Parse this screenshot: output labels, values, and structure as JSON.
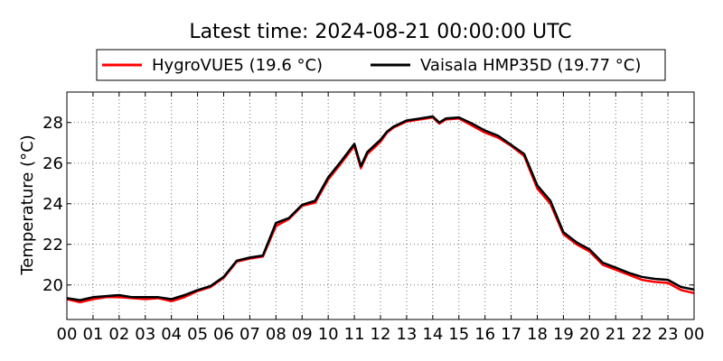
{
  "chart_data": {
    "type": "line",
    "title": "Latest time: 2024-08-21 00:00:00 UTC",
    "ylabel": "Temperature (°C)",
    "xlabel": "",
    "x_ticks": [
      "00",
      "01",
      "02",
      "03",
      "04",
      "05",
      "06",
      "07",
      "08",
      "09",
      "10",
      "11",
      "12",
      "13",
      "14",
      "15",
      "16",
      "17",
      "18",
      "19",
      "20",
      "21",
      "22",
      "23",
      "00"
    ],
    "y_ticks": [
      20,
      22,
      24,
      26,
      28
    ],
    "xlim": [
      0,
      24
    ],
    "ylim": [
      18.3,
      29.5
    ],
    "grid": true,
    "legend_position": "top",
    "series": [
      {
        "name": "HygroVUE5 (19.6 °C)",
        "color": "#ff0000",
        "x": [
          0,
          0.5,
          1,
          1.5,
          2,
          2.5,
          3,
          3.5,
          4,
          4.5,
          5,
          5.5,
          6,
          6.5,
          7,
          7.5,
          8,
          8.5,
          9,
          9.5,
          10,
          10.5,
          11,
          11.25,
          11.5,
          11.75,
          12,
          12.25,
          12.5,
          13,
          13.5,
          14,
          14.25,
          14.5,
          15,
          15.5,
          16,
          16.5,
          17,
          17.5,
          18,
          18.5,
          19,
          19.5,
          20,
          20.5,
          21,
          21.5,
          22,
          22.5,
          23,
          23.5,
          24
        ],
        "values": [
          19.3,
          19.15,
          19.3,
          19.4,
          19.4,
          19.35,
          19.3,
          19.35,
          19.2,
          19.4,
          19.7,
          19.9,
          20.35,
          21.15,
          21.3,
          21.4,
          22.9,
          23.25,
          23.9,
          24.05,
          25.2,
          26.0,
          26.85,
          25.75,
          26.45,
          26.75,
          27.05,
          27.5,
          27.75,
          28.05,
          28.15,
          28.25,
          27.95,
          28.15,
          28.2,
          27.85,
          27.5,
          27.25,
          26.85,
          26.35,
          24.75,
          24.0,
          22.5,
          22.0,
          21.65,
          21.0,
          20.75,
          20.5,
          20.25,
          20.15,
          20.1,
          19.75,
          19.6
        ]
      },
      {
        "name": "Vaisala HMP35D (19.77 °C)",
        "color": "#000000",
        "x": [
          0,
          0.5,
          1,
          1.5,
          2,
          2.5,
          3,
          3.5,
          4,
          4.5,
          5,
          5.5,
          6,
          6.5,
          7,
          7.5,
          8,
          8.5,
          9,
          9.5,
          10,
          10.5,
          11,
          11.25,
          11.5,
          11.75,
          12,
          12.25,
          12.5,
          13,
          13.5,
          14,
          14.25,
          14.5,
          15,
          15.5,
          16,
          16.5,
          17,
          17.5,
          18,
          18.5,
          19,
          19.5,
          20,
          20.5,
          21,
          21.5,
          22,
          22.5,
          23,
          23.5,
          24
        ],
        "values": [
          19.35,
          19.25,
          19.4,
          19.45,
          19.5,
          19.4,
          19.4,
          19.4,
          19.3,
          19.5,
          19.75,
          19.95,
          20.4,
          21.2,
          21.35,
          21.45,
          23.05,
          23.3,
          23.95,
          24.15,
          25.3,
          26.1,
          26.95,
          25.85,
          26.55,
          26.85,
          27.15,
          27.55,
          27.8,
          28.1,
          28.2,
          28.3,
          28.0,
          28.2,
          28.25,
          27.95,
          27.6,
          27.35,
          26.9,
          26.45,
          24.9,
          24.15,
          22.6,
          22.1,
          21.75,
          21.1,
          20.85,
          20.6,
          20.4,
          20.3,
          20.25,
          19.9,
          19.77
        ]
      }
    ]
  }
}
